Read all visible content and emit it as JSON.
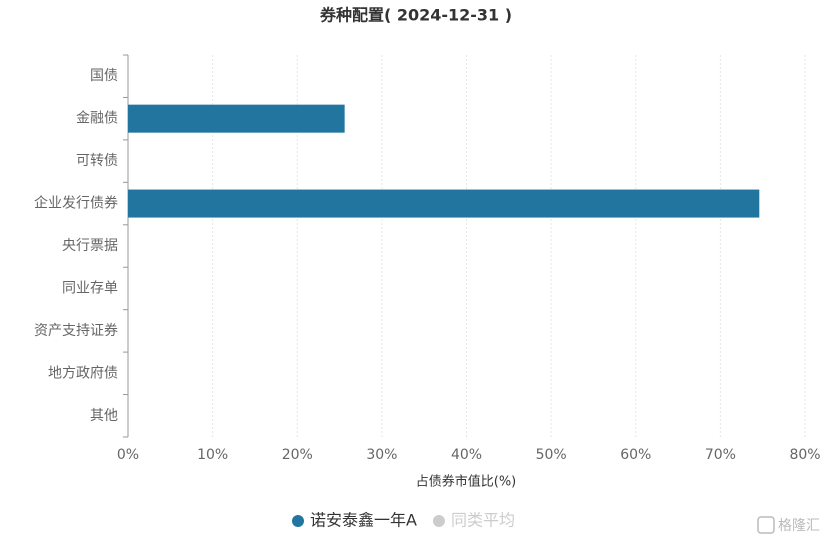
{
  "chart_data": {
    "type": "hbar",
    "title": "券种配置( 2024-12-31 )",
    "categories": [
      "国债",
      "金融债",
      "可转债",
      "企业发行债券",
      "央行票据",
      "同业存单",
      "资产支持证券",
      "地方政府债",
      "其他"
    ],
    "series": [
      {
        "name": "诺安泰鑫一年A",
        "color": "#21759f",
        "visible": true,
        "values": [
          0,
          25.6,
          0,
          74.6,
          0,
          0,
          0,
          0,
          0
        ]
      },
      {
        "name": "同类平均",
        "color": "#cccccc",
        "visible": false,
        "values": [
          null,
          null,
          null,
          null,
          null,
          null,
          null,
          null,
          null
        ]
      }
    ],
    "xlabel": "占债券市值比(%)",
    "xlim": [
      0,
      80
    ],
    "xticks": [
      {
        "value": 0,
        "label": "0%"
      },
      {
        "value": 10,
        "label": "10%"
      },
      {
        "value": 20,
        "label": "20%"
      },
      {
        "value": 30,
        "label": "30%"
      },
      {
        "value": 40,
        "label": "40%"
      },
      {
        "value": 50,
        "label": "50%"
      },
      {
        "value": 60,
        "label": "60%"
      },
      {
        "value": 70,
        "label": "70%"
      },
      {
        "value": 80,
        "label": "80%"
      }
    ],
    "grid": true,
    "watermark": "格隆汇"
  }
}
